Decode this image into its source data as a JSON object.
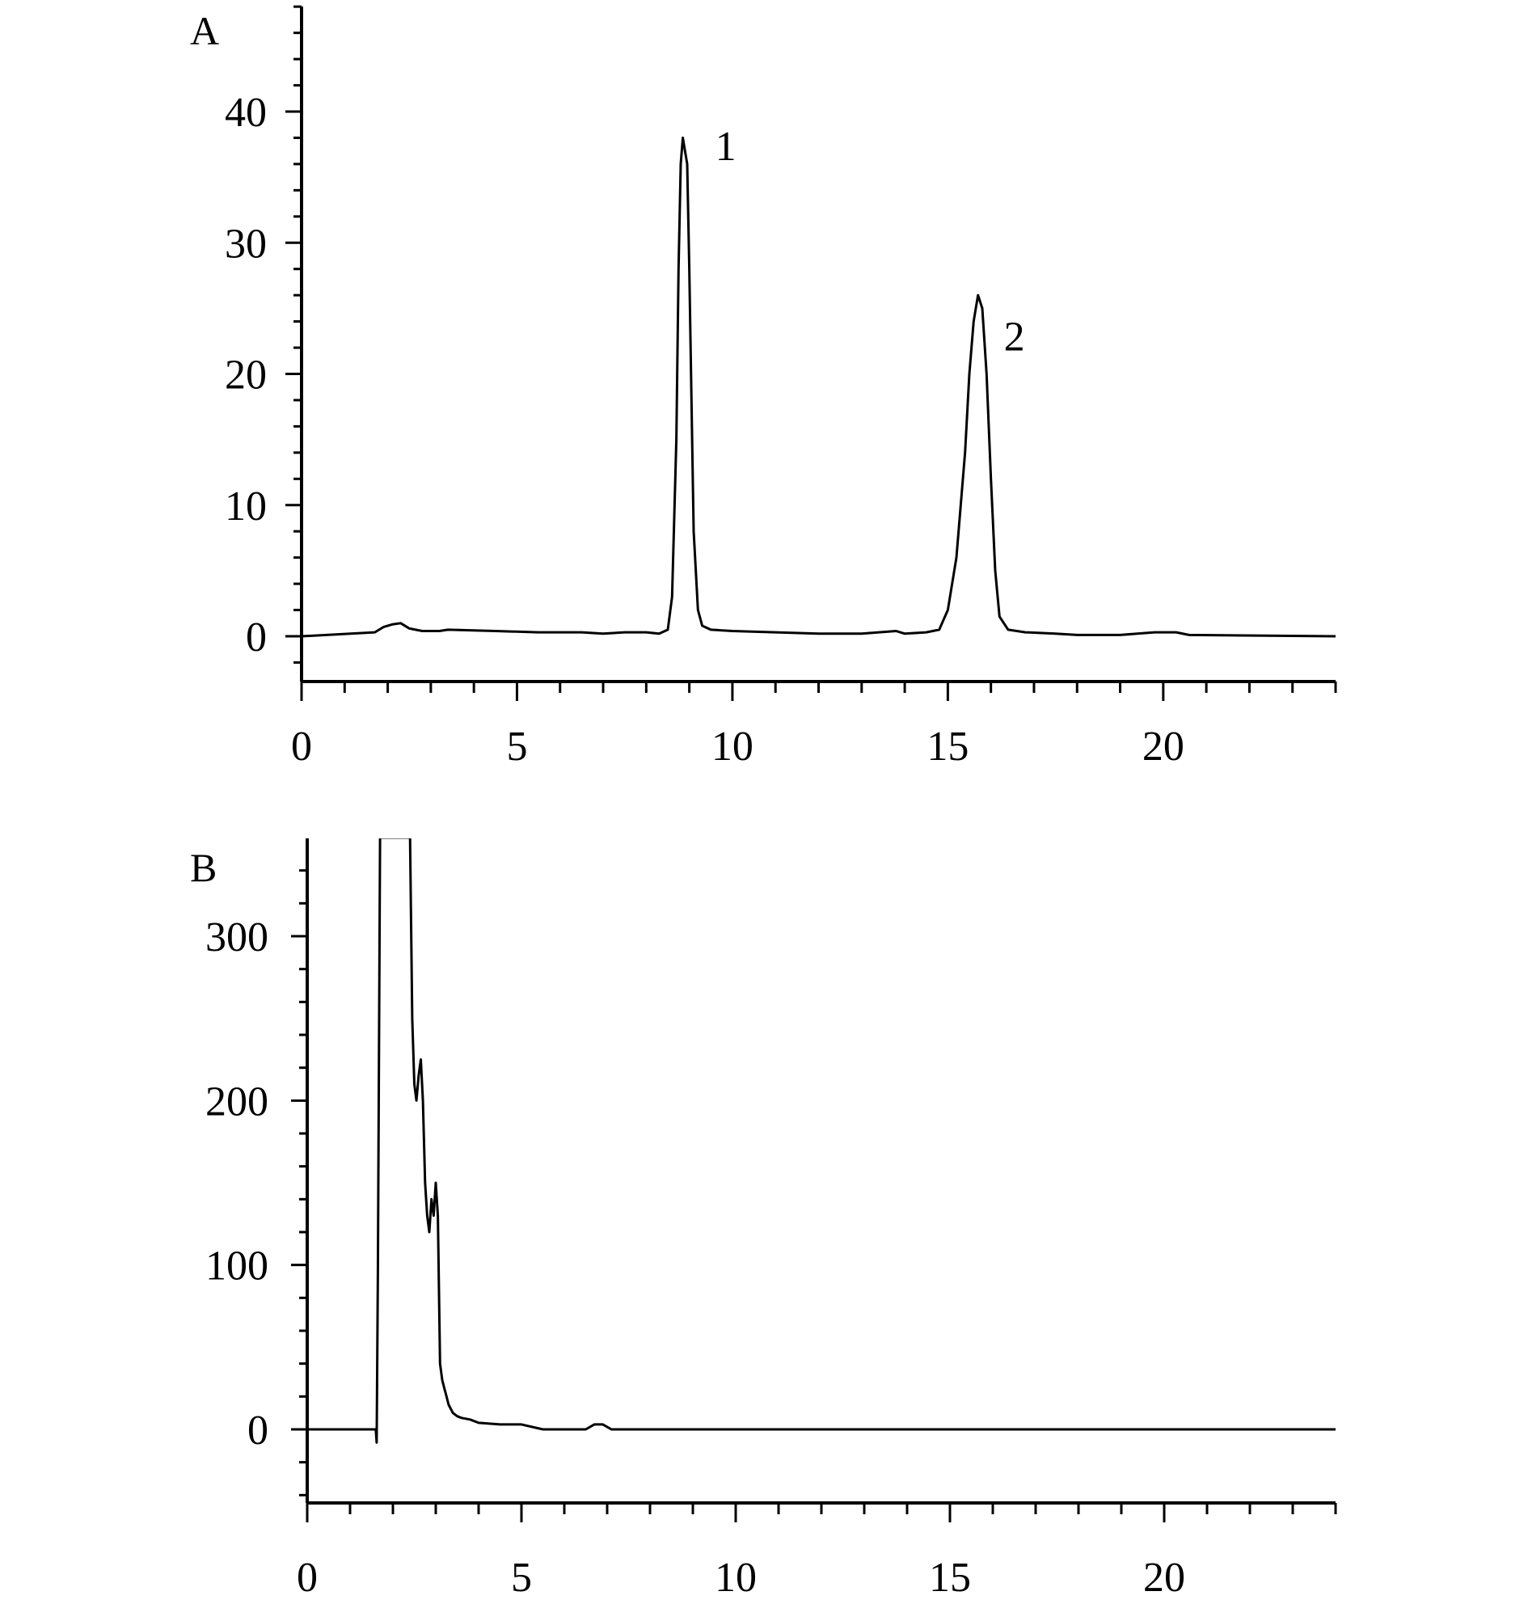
{
  "chart_data": [
    {
      "type": "line",
      "panel_label": "A",
      "title": "",
      "xlabel": "",
      "ylabel": "",
      "xlim": [
        0,
        24
      ],
      "ylim": [
        -3.5,
        48
      ],
      "x_ticks": [
        0,
        5,
        10,
        15,
        20
      ],
      "x_tick_labels": [
        "0",
        "5",
        "10",
        "15",
        "20"
      ],
      "y_ticks": [
        0,
        10,
        20,
        30,
        40
      ],
      "y_tick_labels": [
        "0",
        "10",
        "20",
        "30",
        "40"
      ],
      "annotations": [
        {
          "text": "1",
          "x": 9.6,
          "y": 36.3
        },
        {
          "text": "2",
          "x": 16.3,
          "y": 21.8
        }
      ],
      "series": [
        {
          "x": [
            0,
            1.7,
            1.9,
            2.1,
            2.3,
            2.5,
            2.8,
            3.2,
            3.4,
            4.5,
            5.5,
            6.0,
            6.5,
            7.0,
            7.5,
            8.0,
            8.3,
            8.5,
            8.6,
            8.7,
            8.75,
            8.8,
            8.85,
            8.9,
            8.95,
            9.0,
            9.05,
            9.1,
            9.2,
            9.3,
            9.5,
            10.0,
            11.0,
            12.0,
            13.0,
            13.8,
            14.0,
            14.5,
            14.8,
            15.0,
            15.2,
            15.4,
            15.5,
            15.6,
            15.7,
            15.8,
            15.9,
            16.0,
            16.1,
            16.2,
            16.4,
            16.8,
            17.5,
            18.0,
            19.0,
            19.8,
            20.3,
            20.6,
            24
          ],
          "y": [
            0.0,
            0.3,
            0.7,
            0.9,
            1.0,
            0.6,
            0.4,
            0.4,
            0.5,
            0.4,
            0.3,
            0.3,
            0.3,
            0.2,
            0.3,
            0.3,
            0.2,
            0.5,
            3.0,
            15.0,
            28.0,
            36.0,
            38.0,
            37.0,
            36.0,
            28.0,
            18.0,
            8.0,
            2.0,
            0.8,
            0.5,
            0.4,
            0.3,
            0.2,
            0.2,
            0.4,
            0.2,
            0.3,
            0.5,
            2.0,
            6.0,
            14.0,
            20.0,
            24.0,
            26.0,
            25.0,
            20.0,
            12.0,
            5.0,
            1.5,
            0.5,
            0.3,
            0.2,
            0.1,
            0.1,
            0.3,
            0.3,
            0.1,
            0.0
          ]
        }
      ]
    },
    {
      "type": "line",
      "panel_label": "B",
      "title": "",
      "xlabel": "",
      "ylabel": "",
      "xlim": [
        0,
        24
      ],
      "ylim": [
        -57,
        360
      ],
      "x_ticks": [
        0,
        5,
        10,
        15,
        20
      ],
      "x_tick_labels": [
        "0",
        "5",
        "10",
        "15",
        "20"
      ],
      "y_ticks": [
        0,
        100,
        200,
        300
      ],
      "y_tick_labels": [
        "0",
        "100",
        "200",
        "300"
      ],
      "series": [
        {
          "x": [
            0,
            1.6,
            1.62,
            1.65,
            1.7,
            1.75,
            2.4,
            2.45,
            2.5,
            2.55,
            2.6,
            2.65,
            2.7,
            2.75,
            2.8,
            2.85,
            2.9,
            2.95,
            3.0,
            3.05,
            3.1,
            3.15,
            3.2,
            3.25,
            3.3,
            3.4,
            3.5,
            3.6,
            3.8,
            4.0,
            4.5,
            5.0,
            5.5,
            6.0,
            6.5,
            6.7,
            6.9,
            7.1,
            8.0,
            24
          ],
          "y": [
            0,
            0,
            -8,
            95,
            360,
            360,
            360,
            250,
            210,
            200,
            215,
            225,
            200,
            150,
            130,
            120,
            140,
            130,
            150,
            130,
            40,
            30,
            25,
            20,
            15,
            10,
            8,
            7,
            6,
            4,
            3,
            3,
            0,
            0,
            0,
            3,
            3,
            0,
            0,
            0
          ]
        }
      ]
    }
  ]
}
